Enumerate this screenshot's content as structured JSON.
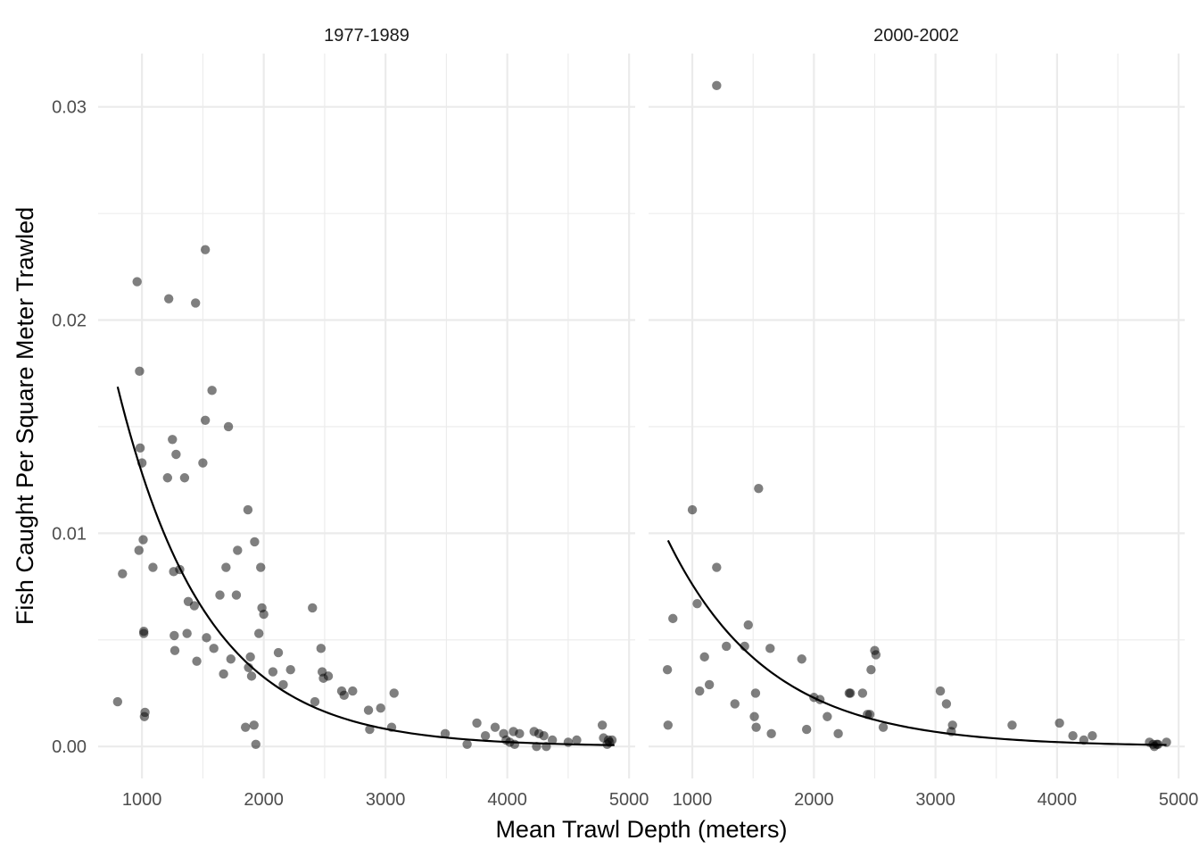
{
  "chart_data": {
    "type": "scatter",
    "xlabel": "Mean Trawl Depth (meters)",
    "ylabel": "Fish Caught Per Square Meter Trawled",
    "xlim": [
      640,
      5050
    ],
    "ylim": [
      -0.0015,
      0.0325
    ],
    "x_ticks": [
      1000,
      2000,
      3000,
      4000,
      5000
    ],
    "y_ticks": [
      0.0,
      0.01,
      0.02,
      0.03
    ],
    "x_tick_labels": [
      "1000",
      "2000",
      "3000",
      "4000",
      "5000"
    ],
    "y_tick_labels": [
      "0.00",
      "0.01",
      "0.02",
      "0.03"
    ],
    "facets": [
      {
        "label": "1977-1989",
        "points": [
          [
            800,
            0.0021
          ],
          [
            840,
            0.0081
          ],
          [
            960,
            0.0218
          ],
          [
            975,
            0.0092
          ],
          [
            980,
            0.0176
          ],
          [
            985,
            0.014
          ],
          [
            1000,
            0.0133
          ],
          [
            1010,
            0.0097
          ],
          [
            1015,
            0.0054
          ],
          [
            1015,
            0.0053
          ],
          [
            1020,
            0.0014
          ],
          [
            1025,
            0.0016
          ],
          [
            1090,
            0.0084
          ],
          [
            1210,
            0.0126
          ],
          [
            1220,
            0.021
          ],
          [
            1250,
            0.0144
          ],
          [
            1260,
            0.0082
          ],
          [
            1265,
            0.0052
          ],
          [
            1270,
            0.0045
          ],
          [
            1280,
            0.0137
          ],
          [
            1310,
            0.0083
          ],
          [
            1350,
            0.0126
          ],
          [
            1370,
            0.0053
          ],
          [
            1380,
            0.0068
          ],
          [
            1430,
            0.0066
          ],
          [
            1440,
            0.0208
          ],
          [
            1450,
            0.004
          ],
          [
            1500,
            0.0133
          ],
          [
            1520,
            0.0233
          ],
          [
            1520,
            0.0153
          ],
          [
            1530,
            0.0051
          ],
          [
            1575,
            0.0167
          ],
          [
            1590,
            0.0046
          ],
          [
            1640,
            0.0071
          ],
          [
            1670,
            0.0034
          ],
          [
            1690,
            0.0084
          ],
          [
            1710,
            0.015
          ],
          [
            1730,
            0.0041
          ],
          [
            1775,
            0.0071
          ],
          [
            1785,
            0.0092
          ],
          [
            1850,
            0.0009
          ],
          [
            1870,
            0.0111
          ],
          [
            1875,
            0.0037
          ],
          [
            1890,
            0.0042
          ],
          [
            1900,
            0.0033
          ],
          [
            1920,
            0.001
          ],
          [
            1925,
            0.0096
          ],
          [
            1935,
            0.0001
          ],
          [
            1960,
            0.0053
          ],
          [
            1975,
            0.0084
          ],
          [
            1985,
            0.0065
          ],
          [
            2000,
            0.0062
          ],
          [
            2075,
            0.0035
          ],
          [
            2120,
            0.0044
          ],
          [
            2160,
            0.0029
          ],
          [
            2220,
            0.0036
          ],
          [
            2400,
            0.0065
          ],
          [
            2420,
            0.0021
          ],
          [
            2470,
            0.0046
          ],
          [
            2480,
            0.0035
          ],
          [
            2490,
            0.0032
          ],
          [
            2530,
            0.0033
          ],
          [
            2640,
            0.0026
          ],
          [
            2660,
            0.0024
          ],
          [
            2730,
            0.0026
          ],
          [
            2860,
            0.0017
          ],
          [
            2870,
            0.0008
          ],
          [
            2960,
            0.0018
          ],
          [
            3050,
            0.0009
          ],
          [
            3070,
            0.0025
          ],
          [
            3490,
            0.0006
          ],
          [
            3670,
            0.0001
          ],
          [
            3750,
            0.0011
          ],
          [
            3820,
            0.0005
          ],
          [
            3900,
            0.0009
          ],
          [
            3970,
            0.0006
          ],
          [
            3990,
            0.0003
          ],
          [
            4020,
            0.0002
          ],
          [
            4050,
            0.0007
          ],
          [
            4060,
            0.0001
          ],
          [
            4100,
            0.0006
          ],
          [
            4220,
            0.0007
          ],
          [
            4240,
            0.0
          ],
          [
            4260,
            0.0006
          ],
          [
            4300,
            0.0005
          ],
          [
            4320,
            0.0
          ],
          [
            4370,
            0.0003
          ],
          [
            4500,
            0.0002
          ],
          [
            4570,
            0.0003
          ],
          [
            4780,
            0.001
          ],
          [
            4790,
            0.0004
          ],
          [
            4820,
            0.0001
          ],
          [
            4830,
            0.0003
          ],
          [
            4840,
            0.0002
          ],
          [
            4860,
            0.0003
          ]
        ],
        "fit": {
          "x_range": [
            800,
            4880
          ],
          "a": 0.0506,
          "k": 0.001373
        }
      },
      {
        "label": "2000-2002",
        "points": [
          [
            795,
            0.0036
          ],
          [
            800,
            0.001
          ],
          [
            840,
            0.006
          ],
          [
            1000,
            0.0111
          ],
          [
            1040,
            0.0067
          ],
          [
            1060,
            0.0026
          ],
          [
            1100,
            0.0042
          ],
          [
            1140,
            0.0029
          ],
          [
            1200,
            0.0084
          ],
          [
            1200,
            0.031
          ],
          [
            1280,
            0.0047
          ],
          [
            1350,
            0.002
          ],
          [
            1430,
            0.0047
          ],
          [
            1460,
            0.0057
          ],
          [
            1510,
            0.0014
          ],
          [
            1520,
            0.0025
          ],
          [
            1525,
            0.0009
          ],
          [
            1545,
            0.0121
          ],
          [
            1640,
            0.0046
          ],
          [
            1650,
            0.0006
          ],
          [
            1900,
            0.0041
          ],
          [
            1940,
            0.0008
          ],
          [
            2000,
            0.0023
          ],
          [
            2050,
            0.0022
          ],
          [
            2110,
            0.0014
          ],
          [
            2200,
            0.0006
          ],
          [
            2290,
            0.0025
          ],
          [
            2300,
            0.0025
          ],
          [
            2400,
            0.0025
          ],
          [
            2440,
            0.0015
          ],
          [
            2460,
            0.0015
          ],
          [
            2470,
            0.0036
          ],
          [
            2500,
            0.0045
          ],
          [
            2510,
            0.0043
          ],
          [
            2570,
            0.0009
          ],
          [
            3040,
            0.0026
          ],
          [
            3090,
            0.002
          ],
          [
            3130,
            0.0007
          ],
          [
            3140,
            0.001
          ],
          [
            3630,
            0.001
          ],
          [
            4020,
            0.0011
          ],
          [
            4130,
            0.0005
          ],
          [
            4220,
            0.0003
          ],
          [
            4290,
            0.0005
          ],
          [
            4760,
            0.0002
          ],
          [
            4790,
            0.0001
          ],
          [
            4800,
            0.0
          ],
          [
            4820,
            0.0001
          ],
          [
            4830,
            0.0001
          ],
          [
            4900,
            0.0002
          ]
        ],
        "fit": {
          "x_range": [
            800,
            4900
          ],
          "a": 0.0253,
          "k": 0.001203
        }
      }
    ]
  }
}
